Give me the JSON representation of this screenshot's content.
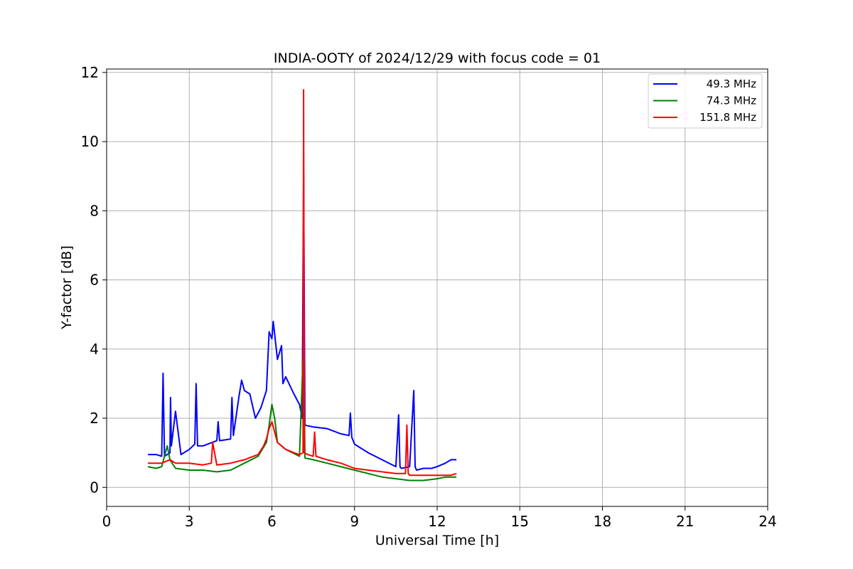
{
  "chart_data": {
    "type": "line",
    "title": "INDIA-OOTY of 2024/12/29 with focus code = 01",
    "xlabel": "Universal Time [h]",
    "ylabel": "Y-factor [dB]",
    "xlim": [
      0,
      24
    ],
    "ylim": [
      -0.55,
      12.1
    ],
    "xticks": [
      0,
      3,
      6,
      9,
      12,
      15,
      18,
      21,
      24
    ],
    "yticks": [
      0,
      2,
      4,
      6,
      8,
      10,
      12
    ],
    "grid": true,
    "legend_position": "top-right",
    "series": [
      {
        "name": "49.3 MHz",
        "color": "#0000ff",
        "x": [
          1.5,
          1.8,
          2.0,
          2.05,
          2.1,
          2.3,
          2.32,
          2.35,
          2.5,
          2.7,
          3.0,
          3.2,
          3.25,
          3.3,
          3.5,
          4.0,
          4.05,
          4.1,
          4.5,
          4.55,
          4.6,
          4.8,
          4.9,
          5.0,
          5.2,
          5.4,
          5.6,
          5.8,
          5.9,
          6.0,
          6.05,
          6.2,
          6.35,
          6.4,
          6.5,
          6.8,
          7.0,
          7.1,
          7.15,
          7.2,
          7.5,
          8.0,
          8.5,
          8.8,
          8.85,
          8.9,
          9.0,
          9.5,
          10.0,
          10.5,
          10.6,
          10.65,
          10.7,
          11.0,
          11.15,
          11.2,
          11.25,
          11.5,
          11.8,
          12.0,
          12.3,
          12.5,
          12.7
        ],
        "y": [
          0.95,
          0.95,
          0.9,
          3.3,
          0.9,
          1.0,
          2.6,
          1.2,
          2.2,
          0.95,
          1.1,
          1.25,
          3.0,
          1.2,
          1.2,
          1.35,
          1.9,
          1.35,
          1.4,
          2.6,
          1.5,
          2.6,
          3.1,
          2.8,
          2.7,
          2.0,
          2.3,
          2.8,
          4.5,
          4.3,
          4.8,
          3.7,
          4.1,
          3.0,
          3.2,
          2.7,
          2.4,
          2.0,
          9.1,
          1.8,
          1.75,
          1.7,
          1.55,
          1.5,
          2.15,
          1.45,
          1.25,
          1.0,
          0.8,
          0.6,
          2.1,
          0.6,
          0.55,
          0.6,
          2.8,
          0.6,
          0.5,
          0.55,
          0.55,
          0.6,
          0.7,
          0.8,
          0.8
        ]
      },
      {
        "name": "74.3 MHz",
        "color": "#008000",
        "x": [
          1.5,
          1.8,
          2.0,
          2.2,
          2.3,
          2.5,
          3.0,
          3.5,
          4.0,
          4.5,
          5.0,
          5.5,
          5.8,
          5.9,
          6.0,
          6.1,
          6.2,
          6.5,
          7.0,
          7.15,
          7.2,
          7.5,
          8.0,
          8.5,
          9.0,
          9.5,
          10.0,
          10.5,
          11.0,
          11.5,
          12.0,
          12.3,
          12.5,
          12.7
        ],
        "y": [
          0.6,
          0.55,
          0.6,
          1.2,
          0.8,
          0.55,
          0.5,
          0.5,
          0.45,
          0.5,
          0.7,
          0.9,
          1.3,
          1.8,
          2.4,
          2.0,
          1.3,
          1.1,
          0.9,
          4.2,
          0.85,
          0.8,
          0.7,
          0.6,
          0.5,
          0.4,
          0.3,
          0.25,
          0.2,
          0.2,
          0.25,
          0.3,
          0.3,
          0.3
        ]
      },
      {
        "name": "151.8 MHz",
        "color": "#ff0000",
        "x": [
          1.5,
          1.8,
          2.0,
          2.3,
          2.5,
          3.0,
          3.5,
          3.8,
          3.85,
          4.0,
          4.5,
          5.0,
          5.5,
          5.7,
          5.8,
          5.9,
          6.0,
          6.2,
          6.5,
          6.8,
          7.0,
          7.13,
          7.15,
          7.18,
          7.3,
          7.5,
          7.55,
          7.6,
          8.0,
          8.5,
          9.0,
          9.5,
          10.0,
          10.5,
          10.85,
          10.9,
          10.95,
          11.0,
          11.5,
          12.0,
          12.5,
          12.7
        ],
        "y": [
          0.7,
          0.7,
          0.7,
          0.8,
          0.7,
          0.7,
          0.65,
          0.7,
          1.3,
          0.65,
          0.7,
          0.8,
          0.95,
          1.2,
          1.4,
          1.7,
          1.9,
          1.3,
          1.1,
          1.0,
          0.95,
          1.0,
          11.5,
          1.0,
          0.95,
          0.9,
          1.6,
          0.9,
          0.8,
          0.7,
          0.55,
          0.5,
          0.45,
          0.4,
          0.4,
          1.8,
          0.4,
          0.35,
          0.35,
          0.35,
          0.35,
          0.4
        ]
      }
    ]
  }
}
